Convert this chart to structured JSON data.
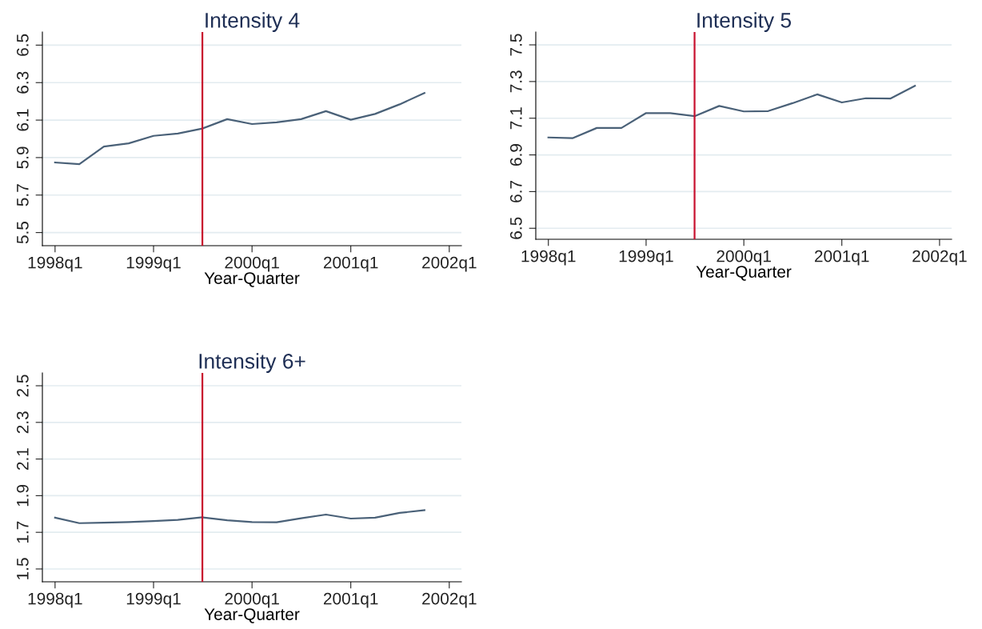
{
  "chart_data": [
    {
      "type": "line",
      "title": "Intensity 4",
      "xlabel": "Year-Quarter",
      "x": [
        "1998-01",
        "1998-04",
        "1998-07",
        "1998-10",
        "1999-01",
        "1999-04",
        "1999-07",
        "1999-10",
        "2000-01",
        "2000-04",
        "2000-07",
        "2000-10",
        "2001-01",
        "2001-04",
        "2001-07",
        "2001-10"
      ],
      "xlim": [
        "1997-11-15",
        "2002-02-15"
      ],
      "xticks": [
        {
          "value": "1998-01",
          "label": "1998q1"
        },
        {
          "value": "1999-01",
          "label": "1999q1"
        },
        {
          "value": "2000-01",
          "label": "2000q1"
        },
        {
          "value": "2001-01",
          "label": "2001q1"
        },
        {
          "value": "2002-01",
          "label": "2002q1"
        }
      ],
      "ylim": [
        5.43,
        6.57
      ],
      "yticks": [
        5.5,
        5.7,
        5.9,
        6.1,
        6.3,
        6.5
      ],
      "grid": "y",
      "legend": false,
      "marker": "none",
      "line_style": "solid",
      "series": [
        {
          "color": "#4a6178",
          "values": [
            5.874,
            5.865,
            5.959,
            5.976,
            6.016,
            6.028,
            6.055,
            6.105,
            6.079,
            6.088,
            6.105,
            6.148,
            6.102,
            6.133,
            6.184,
            6.245
          ]
        }
      ],
      "ref_lines": [
        {
          "axis": "x",
          "value": "1999-07",
          "color": "#c8102e"
        }
      ]
    },
    {
      "type": "line",
      "title": "Intensity 5",
      "xlabel": "Year-Quarter",
      "x": [
        "1998-01",
        "1998-04",
        "1998-07",
        "1998-10",
        "1999-01",
        "1999-04",
        "1999-07",
        "1999-10",
        "2000-01",
        "2000-04",
        "2000-07",
        "2000-10",
        "2001-01",
        "2001-04",
        "2001-07",
        "2001-10"
      ],
      "xlim": [
        "1997-11-15",
        "2002-02-15"
      ],
      "xticks": [
        {
          "value": "1998-01",
          "label": "1998q1"
        },
        {
          "value": "1999-01",
          "label": "1999q1"
        },
        {
          "value": "2000-01",
          "label": "2000q1"
        },
        {
          "value": "2001-01",
          "label": "2001q1"
        },
        {
          "value": "2002-01",
          "label": "2002q1"
        }
      ],
      "ylim": [
        6.44,
        7.57
      ],
      "yticks": [
        6.5,
        6.7,
        6.9,
        7.1,
        7.3,
        7.5
      ],
      "grid": "y",
      "legend": false,
      "marker": "none",
      "line_style": "solid",
      "series": [
        {
          "color": "#4a6178",
          "values": [
            6.995,
            6.991,
            7.047,
            7.047,
            7.128,
            7.128,
            7.111,
            7.167,
            7.137,
            7.139,
            7.182,
            7.23,
            7.186,
            7.209,
            7.207,
            7.277
          ]
        }
      ],
      "ref_lines": [
        {
          "axis": "x",
          "value": "1999-07",
          "color": "#c8102e"
        }
      ]
    },
    {
      "type": "line",
      "title": "Intensity 6+",
      "xlabel": "Year-Quarter",
      "x": [
        "1998-01",
        "1998-04",
        "1998-07",
        "1998-10",
        "1999-01",
        "1999-04",
        "1999-07",
        "1999-10",
        "2000-01",
        "2000-04",
        "2000-07",
        "2000-10",
        "2001-01",
        "2001-04",
        "2001-07",
        "2001-10"
      ],
      "xlim": [
        "1997-11-15",
        "2002-02-15"
      ],
      "xticks": [
        {
          "value": "1998-01",
          "label": "1998q1"
        },
        {
          "value": "1999-01",
          "label": "1999q1"
        },
        {
          "value": "2000-01",
          "label": "2000q1"
        },
        {
          "value": "2001-01",
          "label": "2001q1"
        },
        {
          "value": "2002-01",
          "label": "2002q1"
        }
      ],
      "ylim": [
        1.43,
        2.57
      ],
      "yticks": [
        1.5,
        1.7,
        1.9,
        2.1,
        2.3,
        2.5
      ],
      "grid": "y",
      "legend": false,
      "marker": "none",
      "line_style": "solid",
      "series": [
        {
          "color": "#4a6178",
          "values": [
            1.78,
            1.75,
            1.753,
            1.756,
            1.761,
            1.768,
            1.782,
            1.766,
            1.756,
            1.755,
            1.777,
            1.797,
            1.775,
            1.78,
            1.806,
            1.821
          ]
        }
      ],
      "ref_lines": [
        {
          "axis": "x",
          "value": "1999-07",
          "color": "#c8102e"
        }
      ]
    }
  ]
}
